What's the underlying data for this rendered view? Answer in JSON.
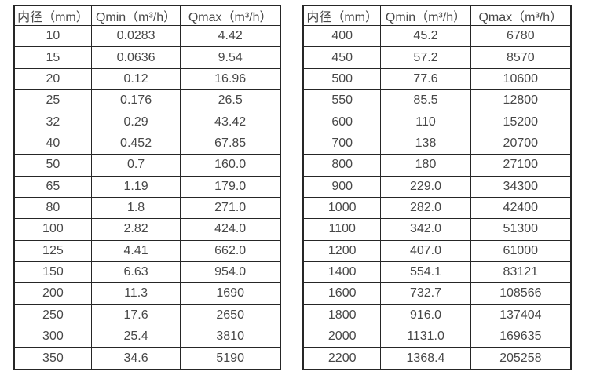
{
  "page": {
    "background": "#ffffff",
    "text_color": "#474747",
    "border_color": "#262626"
  },
  "chart_data": [
    {
      "type": "table",
      "name": "flow-range-dn10-350",
      "columns": [
        "内径（mm）",
        "Qmin（m³/h）",
        "Qmax（m³/h）"
      ],
      "rows": [
        [
          "10",
          "0.0283",
          "4.42"
        ],
        [
          "15",
          "0.0636",
          "9.54"
        ],
        [
          "20",
          "0.12",
          "16.96"
        ],
        [
          "25",
          "0.176",
          "26.5"
        ],
        [
          "32",
          "0.29",
          "43.42"
        ],
        [
          "40",
          "0.452",
          "67.85"
        ],
        [
          "50",
          "0.7",
          "160.0"
        ],
        [
          "65",
          "1.19",
          "179.0"
        ],
        [
          "80",
          "1.8",
          "271.0"
        ],
        [
          "100",
          "2.82",
          "424.0"
        ],
        [
          "125",
          "4.41",
          "662.0"
        ],
        [
          "150",
          "6.63",
          "954.0"
        ],
        [
          "200",
          "11.3",
          "1690"
        ],
        [
          "250",
          "17.6",
          "2650"
        ],
        [
          "300",
          "25.4",
          "3810"
        ],
        [
          "350",
          "34.6",
          "5190"
        ]
      ]
    },
    {
      "type": "table",
      "name": "flow-range-dn400-2200",
      "columns": [
        "内径（mm）",
        "Qmin（m³/h）",
        "Qmax（m³/h）"
      ],
      "rows": [
        [
          "400",
          "45.2",
          "6780"
        ],
        [
          "450",
          "57.2",
          "8570"
        ],
        [
          "500",
          "77.6",
          "10600"
        ],
        [
          "550",
          "85.5",
          "12800"
        ],
        [
          "600",
          "110",
          "15200"
        ],
        [
          "700",
          "138",
          "20700"
        ],
        [
          "800",
          "180",
          "27100"
        ],
        [
          "900",
          "229.0",
          "34300"
        ],
        [
          "1000",
          "282.0",
          "42400"
        ],
        [
          "1100",
          "342.0",
          "51300"
        ],
        [
          "1200",
          "407.0",
          "61000"
        ],
        [
          "1400",
          "554.1",
          "83121"
        ],
        [
          "1600",
          "732.7",
          "108566"
        ],
        [
          "1800",
          "916.0",
          "137404"
        ],
        [
          "2000",
          "1131.0",
          "169635"
        ],
        [
          "2200",
          "1368.4",
          "205258"
        ]
      ]
    }
  ]
}
